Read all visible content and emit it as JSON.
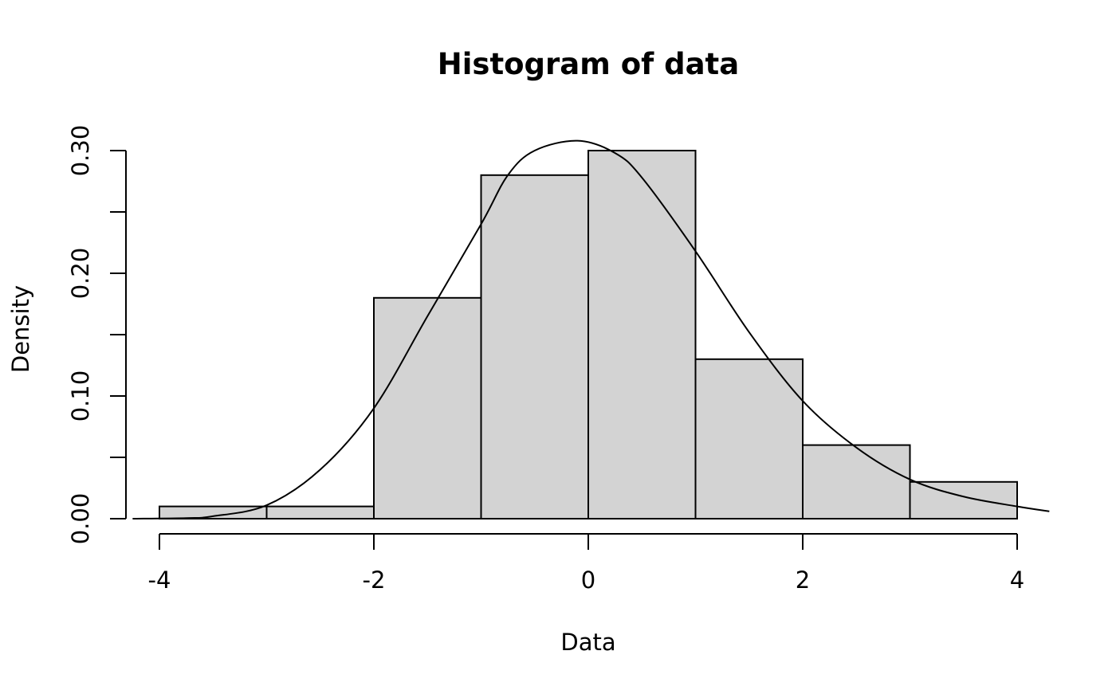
{
  "chart_data": {
    "type": "bar",
    "title": "Histogram of data",
    "xlabel": "Data",
    "ylabel": "Density",
    "xlim": [
      -4.3,
      4.3
    ],
    "ylim": [
      0,
      0.3
    ],
    "bins": [
      {
        "x0": -4,
        "x1": -3,
        "density": 0.01
      },
      {
        "x0": -3,
        "x1": -2,
        "density": 0.01
      },
      {
        "x0": -2,
        "x1": -1,
        "density": 0.18
      },
      {
        "x0": -1,
        "x1": 0,
        "density": 0.28
      },
      {
        "x0": 0,
        "x1": 1,
        "density": 0.3
      },
      {
        "x0": 1,
        "x1": 2,
        "density": 0.13
      },
      {
        "x0": 2,
        "x1": 3,
        "density": 0.06
      },
      {
        "x0": 3,
        "x1": 4,
        "density": 0.03
      }
    ],
    "x_ticks": [
      {
        "value": -4,
        "label": "-4"
      },
      {
        "value": -2,
        "label": "-2"
      },
      {
        "value": 0,
        "label": "0"
      },
      {
        "value": 2,
        "label": "2"
      },
      {
        "value": 4,
        "label": "4"
      }
    ],
    "y_ticks": [
      {
        "value": 0.0,
        "label": "0.00"
      },
      {
        "value": 0.05,
        "label": ""
      },
      {
        "value": 0.1,
        "label": "0.10"
      },
      {
        "value": 0.15,
        "label": ""
      },
      {
        "value": 0.2,
        "label": "0.20"
      },
      {
        "value": 0.25,
        "label": ""
      },
      {
        "value": 0.3,
        "label": "0.30"
      }
    ],
    "density_curve": {
      "points": [
        [
          -4.25,
          0.0
        ],
        [
          -3.75,
          0.0005
        ],
        [
          -3.5,
          0.002
        ],
        [
          -3.0,
          0.011
        ],
        [
          -2.5,
          0.04
        ],
        [
          -2.0,
          0.09
        ],
        [
          -1.5,
          0.165
        ],
        [
          -1.0,
          0.24
        ],
        [
          -0.75,
          0.28
        ],
        [
          -0.5,
          0.3
        ],
        [
          -0.1,
          0.308
        ],
        [
          0.25,
          0.298
        ],
        [
          0.5,
          0.278
        ],
        [
          1.0,
          0.218
        ],
        [
          1.5,
          0.152
        ],
        [
          2.0,
          0.096
        ],
        [
          2.5,
          0.058
        ],
        [
          3.0,
          0.032
        ],
        [
          3.5,
          0.018
        ],
        [
          4.0,
          0.01
        ],
        [
          4.3,
          0.006
        ]
      ]
    },
    "grid": false,
    "legend": "none"
  }
}
